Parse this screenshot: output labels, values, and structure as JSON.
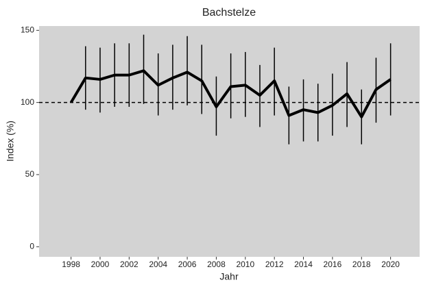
{
  "chart_data": {
    "type": "line",
    "title": "Bachstelze",
    "x_label": "Jahr",
    "y_label": "Index (%)",
    "x": [
      1998,
      1999,
      2000,
      2001,
      2002,
      2003,
      2004,
      2005,
      2006,
      2007,
      2008,
      2009,
      2010,
      2011,
      2012,
      2013,
      2014,
      2015,
      2016,
      2017,
      2018,
      2019,
      2020
    ],
    "series": [
      {
        "color": "#000000",
        "values": [
          100,
          117,
          116,
          119,
          119,
          122,
          112,
          117,
          121,
          115,
          97,
          111,
          112,
          105,
          115,
          91,
          95,
          93,
          98,
          106,
          90,
          109,
          116
        ],
        "upper": [
          null,
          139,
          138,
          141,
          141,
          147,
          134,
          140,
          146,
          140,
          118,
          134,
          135,
          126,
          138,
          111,
          116,
          113,
          120,
          128,
          109,
          131,
          141
        ],
        "lower": [
          null,
          95,
          93,
          97,
          97,
          99,
          91,
          95,
          98,
          92,
          77,
          89,
          90,
          83,
          91,
          71,
          73,
          73,
          77,
          83,
          71,
          86,
          91
        ]
      }
    ],
    "hline": 100,
    "xlim": [
      1995.8,
      2022
    ],
    "xticks": [
      1998,
      2000,
      2002,
      2004,
      2006,
      2008,
      2010,
      2012,
      2014,
      2016,
      2018,
      2020
    ],
    "ylim": [
      -7,
      153
    ],
    "yticks": [
      0,
      50,
      100,
      150
    ]
  }
}
